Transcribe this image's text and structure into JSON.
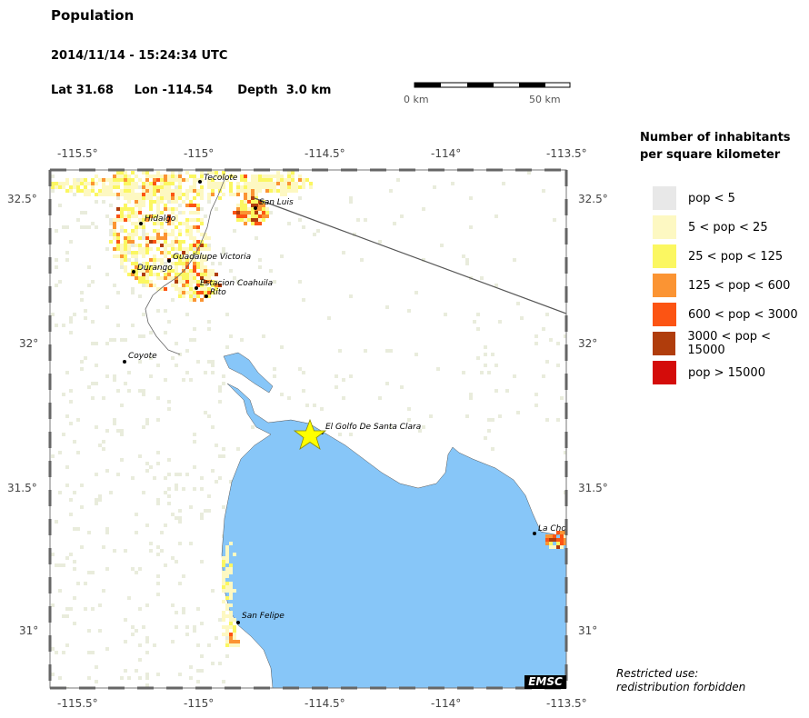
{
  "header": {
    "title": "Population",
    "datetime": "2014/11/14 - 15:24:34 UTC",
    "lat": "Lat 31.68",
    "lon": "Lon -114.54",
    "depth": "Depth  3.0 km"
  },
  "scale_bar": {
    "start_label": "0 km",
    "end_label": "50 km"
  },
  "axes": {
    "lon_ticks": [
      "-115.5°",
      "-115°",
      "-114.5°",
      "-114°",
      "-113.5°"
    ],
    "lat_ticks": [
      "32.5°",
      "32°",
      "31.5°",
      "31°"
    ]
  },
  "places": [
    {
      "name": "Tecolote"
    },
    {
      "name": "San Luis"
    },
    {
      "name": "Hidalgo"
    },
    {
      "name": "Guadalupe Victoria"
    },
    {
      "name": "Durango"
    },
    {
      "name": "Estacion Coahuila"
    },
    {
      "name": "Rito"
    },
    {
      "name": "Coyote"
    },
    {
      "name": "El Golfo De Santa Clara"
    },
    {
      "name": "La Cho"
    },
    {
      "name": "San Felipe"
    }
  ],
  "legend": {
    "title_line1": "Number of inhabitants",
    "title_line2": "per square kilometer",
    "items": [
      {
        "label": "pop < 5",
        "color": "#e8e8e8"
      },
      {
        "label": "5 < pop < 25",
        "color": "#fdf8c2"
      },
      {
        "label": "25 < pop < 125",
        "color": "#fbf761"
      },
      {
        "label": "125 < pop < 600",
        "color": "#fb9433"
      },
      {
        "label": "600 < pop < 3000",
        "color": "#fc5413"
      },
      {
        "label": "3000 < pop < 15000",
        "color": "#b03d0c"
      },
      {
        "label": "pop > 15000",
        "color": "#d40c0a"
      }
    ]
  },
  "colors": {
    "sea": "#87c6f8",
    "epicenter": "#ffff00",
    "land_low": "#e9ecdc"
  },
  "epicenter_icon": "star-icon",
  "notice": {
    "line1": "Restricted use:",
    "line2": "redistribution forbidden"
  },
  "logo": "EMSC"
}
